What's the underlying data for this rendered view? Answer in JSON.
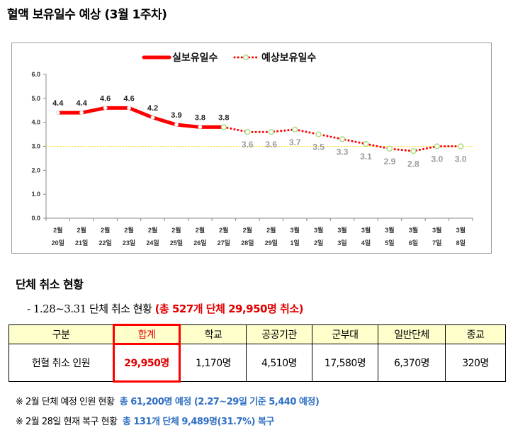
{
  "page_title": "혈액 보유일수 예상 (3월 1주차)",
  "chart_data": {
    "type": "line",
    "categories": [
      [
        "2월",
        "20일"
      ],
      [
        "2월",
        "21일"
      ],
      [
        "2월",
        "22일"
      ],
      [
        "2월",
        "23일"
      ],
      [
        "2월",
        "24일"
      ],
      [
        "2월",
        "25일"
      ],
      [
        "2월",
        "26일"
      ],
      [
        "2월",
        "27일"
      ],
      [
        "2월",
        "28일"
      ],
      [
        "2월",
        "29일"
      ],
      [
        "3월",
        "1일"
      ],
      [
        "3월",
        "2일"
      ],
      [
        "3월",
        "3일"
      ],
      [
        "3월",
        "4일"
      ],
      [
        "3월",
        "5일"
      ],
      [
        "3월",
        "6일"
      ],
      [
        "3월",
        "7일"
      ],
      [
        "3월",
        "8일"
      ]
    ],
    "series": [
      {
        "name": "실보유일수",
        "color": "#ff0000",
        "values": [
          4.4,
          4.4,
          4.6,
          4.6,
          4.2,
          3.9,
          3.8,
          3.8,
          null,
          null,
          null,
          null,
          null,
          null,
          null,
          null,
          null,
          null
        ],
        "labels": [
          "4.4",
          "4.4",
          "4.6",
          "4.6",
          "4.2",
          "3.9",
          "3.8",
          "3.8",
          "",
          "",
          "",
          "",
          "",
          "",
          "",
          "",
          "",
          ""
        ]
      },
      {
        "name": "예상보유일수",
        "color": "#ff0000",
        "values": [
          null,
          null,
          null,
          null,
          null,
          null,
          null,
          3.8,
          3.6,
          3.6,
          3.7,
          3.5,
          3.3,
          3.1,
          2.9,
          2.8,
          3.0,
          3.0
        ],
        "labels": [
          "",
          "",
          "",
          "",
          "",
          "",
          "",
          "",
          "3.6",
          "3.6",
          "3.7",
          "3.5",
          "3.3",
          "3.1",
          "2.9",
          "2.8",
          "3.0",
          "3.0"
        ]
      }
    ],
    "reference_line": {
      "value": 3.0,
      "color": "#ffd700"
    },
    "ylim": [
      0,
      6
    ],
    "yticks": [
      "0.0",
      "1.0",
      "2.0",
      "3.0",
      "4.0",
      "5.0",
      "6.0"
    ],
    "legend_position": "top-center",
    "grid": false
  },
  "section_title": "단체 취소 현황",
  "summary": {
    "prefix": "- 1.28~3.31",
    "text": " 단체 취소 현황 ",
    "highlight": "(총 527개 단체 29,950명 취소)"
  },
  "table": {
    "headers": [
      "구분",
      "합계",
      "학교",
      "공공기관",
      "군부대",
      "일반단체",
      "종교"
    ],
    "row": [
      "헌혈 취소 인원",
      "29,950명",
      "1,170명",
      "4,510명",
      "17,580명",
      "6,370명",
      "320명"
    ]
  },
  "notes": [
    {
      "prefix": "※ 2월 단체 예정 인원 현황",
      "highlight": "총 61,200명 예정 (2.27~29일 기준 5,440 예정)"
    },
    {
      "prefix": "※ 2월 28일 현재 복구 현황",
      "highlight": "총 131개 단체 9,489명(31.7%) 복구"
    }
  ],
  "colors": {
    "actual": "#ff0000",
    "forecast": "#ff0000",
    "reference": "#ffd700",
    "forecast_marker": "#a8d878",
    "highlight_red": "#e00000",
    "highlight_blue": "#2e6fc4",
    "header_fill": "#ffffcc"
  }
}
